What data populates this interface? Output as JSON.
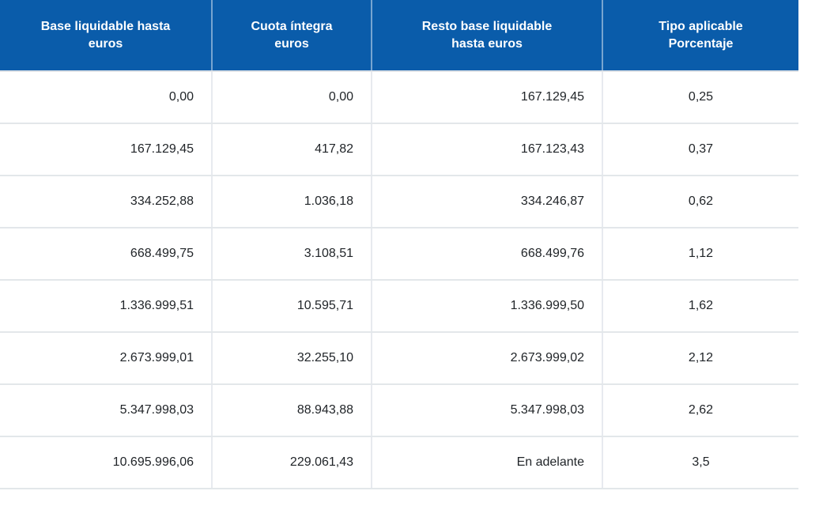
{
  "table": {
    "name": "tabla-tipos-gravamen",
    "headers": [
      {
        "line1": "Base liquidable hasta",
        "line2": "euros"
      },
      {
        "line1": "Cuota íntegra",
        "line2": "euros"
      },
      {
        "line1": "Resto base liquidable",
        "line2": "hasta euros"
      },
      {
        "line1": "Tipo aplicable",
        "line2": "Porcentaje"
      }
    ],
    "rows": [
      [
        "0,00",
        "0,00",
        "167.129,45",
        "0,25"
      ],
      [
        "167.129,45",
        "417,82",
        "167.123,43",
        "0,37"
      ],
      [
        "334.252,88",
        "1.036,18",
        "334.246,87",
        "0,62"
      ],
      [
        "668.499,75",
        "3.108,51",
        "668.499,76",
        "1,12"
      ],
      [
        "1.336.999,51",
        "10.595,71",
        "1.336.999,50",
        "1,62"
      ],
      [
        "2.673.999,01",
        "32.255,10",
        "2.673.999,02",
        "2,12"
      ],
      [
        "5.347.998,03",
        "88.943,88",
        "5.347.998,03",
        "2,62"
      ],
      [
        "10.695.996,06",
        "229.061,43",
        "En adelante",
        "3,5"
      ]
    ],
    "colors": {
      "header_bg": "#0a5caa",
      "header_text": "#ffffff",
      "row_border": "#e3e7ea",
      "cell_text": "#212529"
    }
  }
}
